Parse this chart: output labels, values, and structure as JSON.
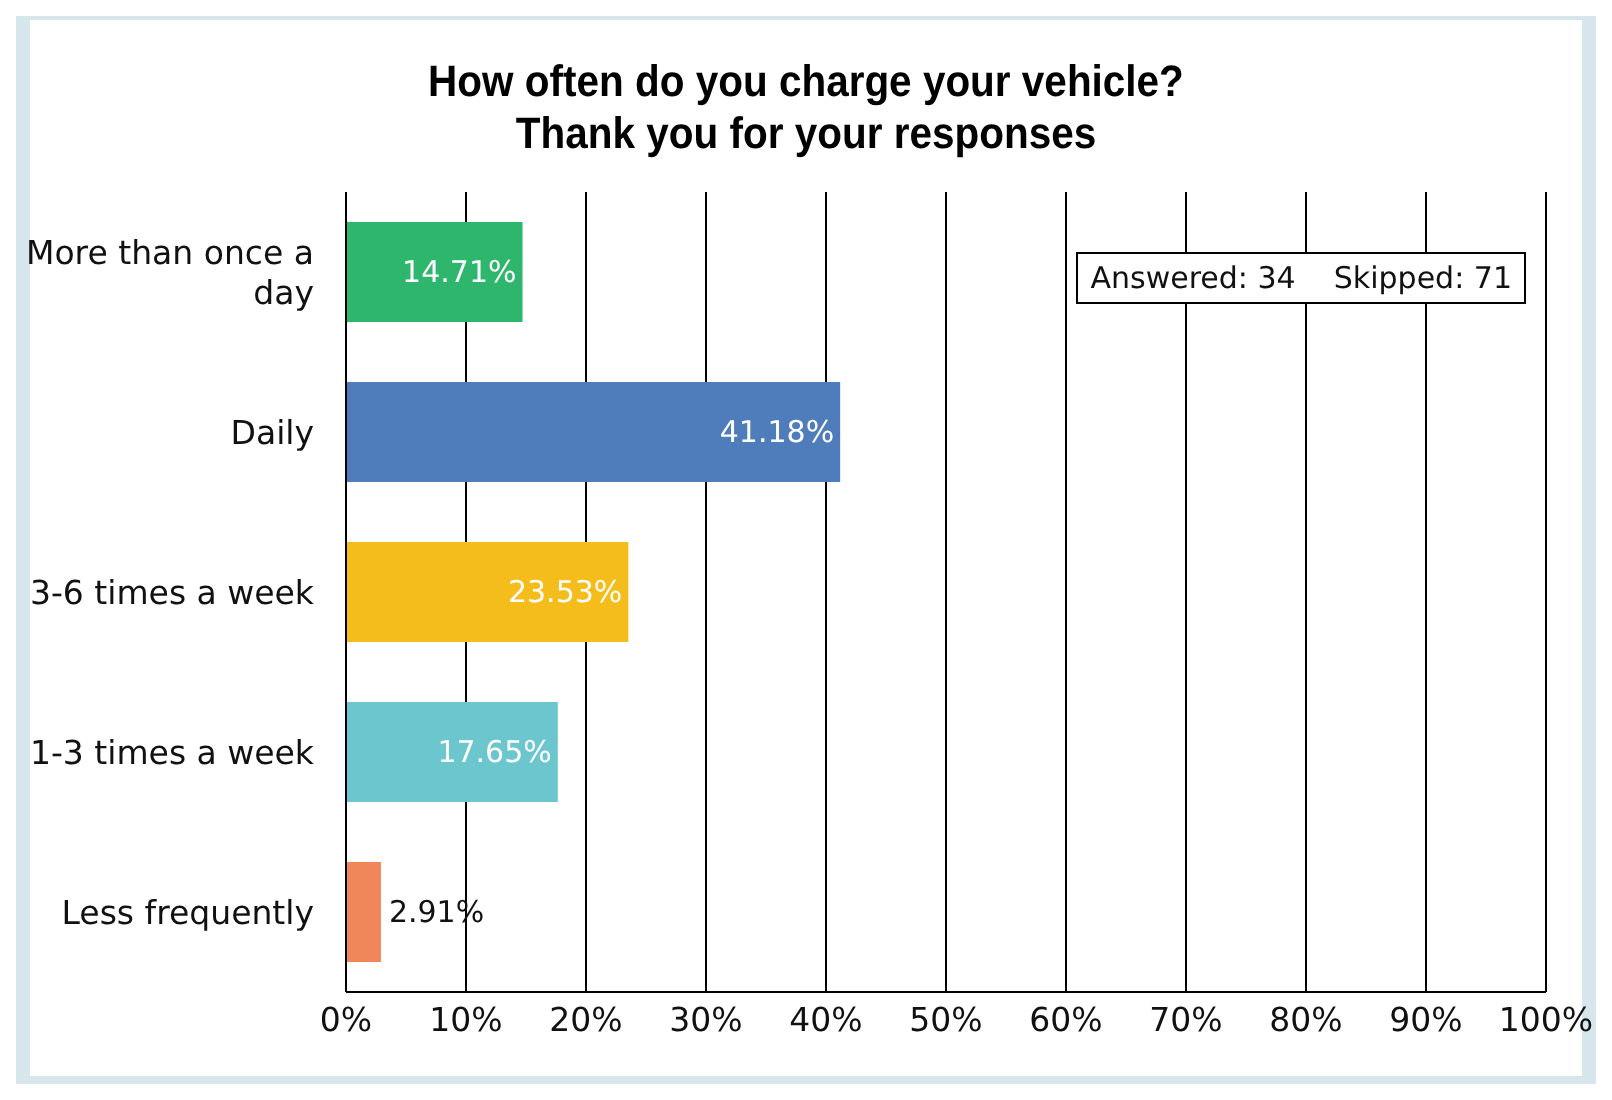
{
  "chart_data": {
    "type": "bar",
    "orientation": "horizontal",
    "title": "How often do you charge your vehicle?\nThank you for your responses",
    "categories": [
      "More than once a day",
      "Daily",
      "3-6 times a week",
      "1-3 times a week",
      "Less frequently"
    ],
    "values": [
      14.71,
      41.18,
      23.53,
      17.65,
      2.91
    ],
    "value_labels": [
      "14.71%",
      "41.18%",
      "23.53%",
      "17.65%",
      "2.91%"
    ],
    "colors": [
      "#2eb66d",
      "#4f7cba",
      "#f5bd1b",
      "#6cc6ce",
      "#f0875a"
    ],
    "xlim": [
      0,
      100
    ],
    "xticks": [
      {
        "value": 0,
        "label": "0%"
      },
      {
        "value": 10,
        "label": "10%"
      },
      {
        "value": 20,
        "label": "20%"
      },
      {
        "value": 30,
        "label": "30%"
      },
      {
        "value": 40,
        "label": "40%"
      },
      {
        "value": 50,
        "label": "50%"
      },
      {
        "value": 60,
        "label": "60%"
      },
      {
        "value": 70,
        "label": "70%"
      },
      {
        "value": 80,
        "label": "80%"
      },
      {
        "value": 90,
        "label": "90%"
      },
      {
        "value": 100,
        "label": "100%"
      }
    ],
    "grid": "x",
    "legend": false,
    "annotations": [
      "Answered: 34    Skipped: 71"
    ]
  }
}
